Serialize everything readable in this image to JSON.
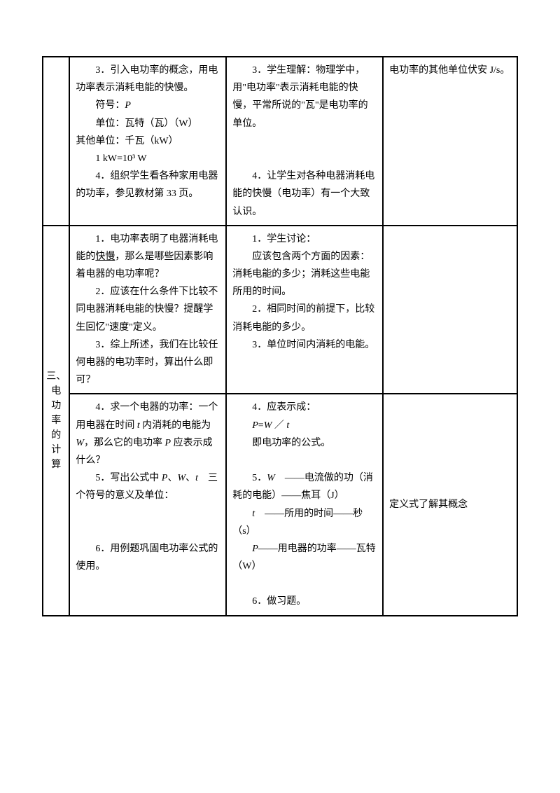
{
  "row1": {
    "col2": {
      "p1": "3．引入电功率的概念，用电功率表示消耗电能的快慢。",
      "p2": "符号：",
      "p2_italic": "P",
      "p3": "单位：瓦特（瓦）（W）",
      "p4": "其他单位：千瓦（kW）",
      "p5": "1 kW=10³ W",
      "p6": "4．组织学生看各种家用电器的功率，参见教材第 33 页。"
    },
    "col3": {
      "p1": "3．学生理解：物理学中，用\"电功率\"表示消耗电能的快慢，平常所说的\"瓦\"是电功率的单位。",
      "p2": "4．让学生对各种电器消耗电能的快慢（电功率）有一个大致认识。"
    },
    "col4": {
      "p1": "电功率的其他单位伏安 J/s。"
    }
  },
  "section3": {
    "label_l1": "三、",
    "label_l2": "电",
    "label_l3": "功",
    "label_l4": "率",
    "label_l5": "的",
    "label_l6": "计",
    "label_l7": "算"
  },
  "row2a": {
    "col2": {
      "p1_a": "1．电功率表明了电器消耗电能的",
      "p1_u": "快慢",
      "p1_b": "，那么是哪些因素影响着电器的电功率呢？",
      "p2": "2．应该在什么条件下比较不同电器消耗电能的快慢？提醒学生回忆\"速度\"定义。",
      "p3": "3．综上所述，我们在比较任何电器的电功率时，算出什么即可？"
    },
    "col3": {
      "p1": "1．学生讨论：",
      "p2": "应该包含两个方面的因素：消耗电能的多少；消耗这些电能所用的时间。",
      "p3": "2．相同时间的前提下，比较消耗电能的多少。",
      "p4": "3．单位时间内消耗的电能。"
    },
    "col4": ""
  },
  "row2b": {
    "col2": {
      "p1_a": "4．求一个电器的功率：一个用电器在时间 ",
      "p1_i1": "t",
      "p1_b": " 内消耗的电能为 ",
      "p1_i2": "W",
      "p1_c": "，那么它的电功率 ",
      "p1_i3": "P",
      "p1_d": " 应表示成什么？",
      "p2_a": "5．写出公式中 ",
      "p2_i1": "P",
      "p2_b": "、",
      "p2_i2": "W",
      "p2_c": "、",
      "p2_i3": "t",
      "p2_d": "　三个符号的意义及单位：",
      "p3": "6．用例题巩固电功率公式的使用。"
    },
    "col3": {
      "p1": "4．应表示成：",
      "p2_i1": "P",
      "p2_a": "=",
      "p2_i2": "W",
      "p2_b": " ／ ",
      "p2_i3": "t",
      "p3": "即电功率的公式。",
      "p4_a": "5．",
      "p4_i": "W",
      "p4_b": "　——电流做的功（消耗的电能）——焦耳（J）",
      "p5_i": "t",
      "p5_b": "　——所用的时间——秒（s）",
      "p6_i": "P",
      "p6_b": "——用电器的功率——瓦特（W）",
      "p7": "6．做习题。"
    },
    "col4": {
      "p1": "定义式了解其概念"
    }
  }
}
